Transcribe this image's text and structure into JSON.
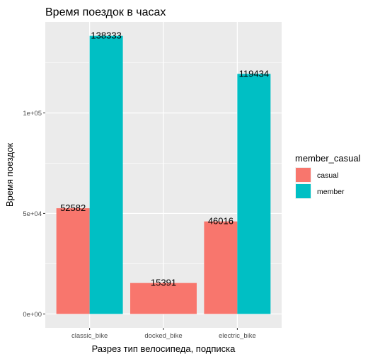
{
  "chart_data": {
    "type": "bar",
    "title": "Время поездок в часах",
    "xlabel": "Разрез тип велосипеда, подписка",
    "ylabel": "Время поездок",
    "categories": [
      "classic_bike",
      "docked_bike",
      "electric_bike"
    ],
    "series": [
      {
        "name": "casual",
        "values": [
          52582,
          15391,
          46016
        ],
        "color": "#F8766D"
      },
      {
        "name": "member",
        "values": [
          138333,
          null,
          119434
        ],
        "color": "#00BFC4"
      }
    ],
    "y_ticks": [
      0,
      50000,
      100000
    ],
    "y_tick_labels": [
      "0e+00",
      "5e+04",
      "1e+05"
    ],
    "ylim": [
      -6917,
      145250
    ],
    "legend": {
      "title": "member_casual",
      "position": "right"
    },
    "grid": true,
    "panel_background": "#EBEBEB",
    "grid_color": "#FFFFFF"
  }
}
